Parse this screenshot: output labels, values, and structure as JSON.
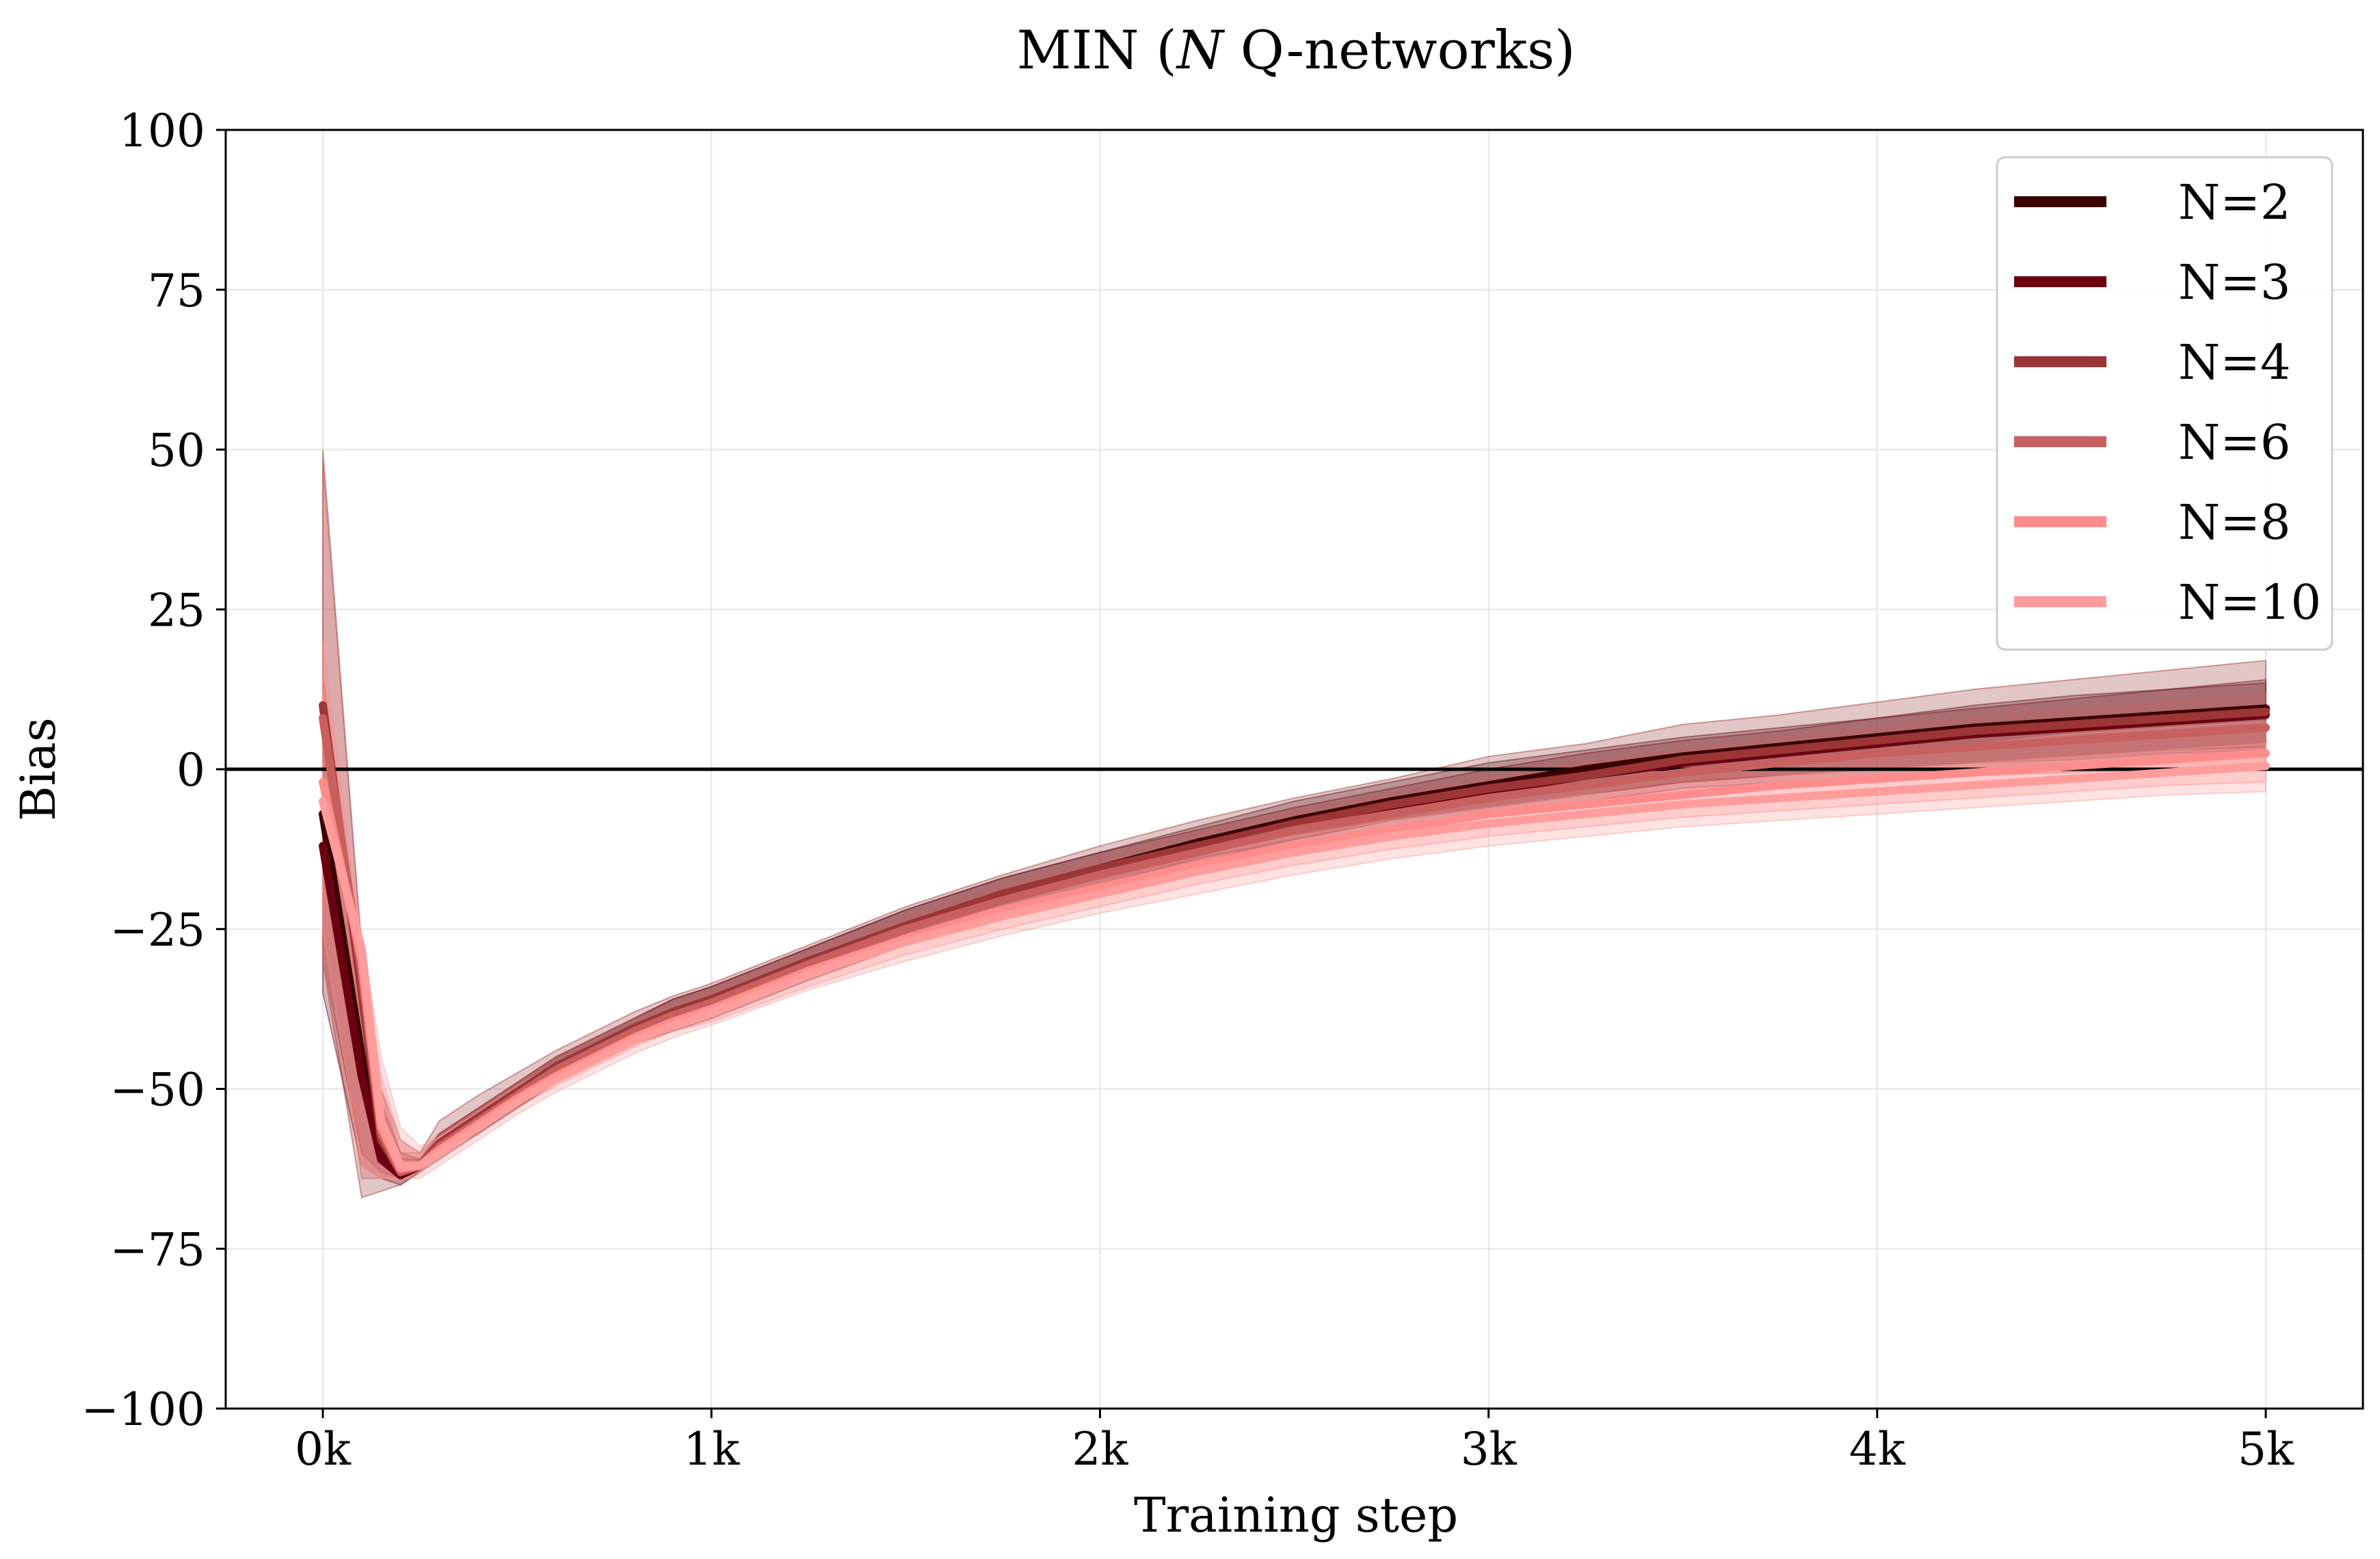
{
  "chart_data": {
    "type": "line",
    "title_main": "MIN (",
    "title_var": "N",
    "title_rest": " Q-networks)",
    "xlabel": "Training step",
    "ylabel": "Bias",
    "xlim": [
      -250,
      5250
    ],
    "ylim": [
      -100,
      100
    ],
    "x_ticks": [
      {
        "value": 0,
        "label": "0k"
      },
      {
        "value": 1000,
        "label": "1k"
      },
      {
        "value": 2000,
        "label": "2k"
      },
      {
        "value": 3000,
        "label": "3k"
      },
      {
        "value": 4000,
        "label": "4k"
      },
      {
        "value": 5000,
        "label": "5k"
      }
    ],
    "y_ticks": [
      {
        "value": 100,
        "label": "100"
      },
      {
        "value": 75,
        "label": "75"
      },
      {
        "value": 50,
        "label": "50"
      },
      {
        "value": 25,
        "label": "25"
      },
      {
        "value": 0,
        "label": "0"
      },
      {
        "value": -25,
        "label": "−25"
      },
      {
        "value": -50,
        "label": "−50"
      },
      {
        "value": -75,
        "label": "−75"
      },
      {
        "value": -100,
        "label": "−100"
      }
    ],
    "grid": true,
    "reference_line_y": 0,
    "legend_position": "top-right",
    "x": [
      0,
      100,
      150,
      200,
      250,
      300,
      400,
      500,
      600,
      700,
      800,
      900,
      1000,
      1250,
      1500,
      1750,
      2000,
      2250,
      2500,
      2750,
      3000,
      3250,
      3500,
      3750,
      4000,
      4250,
      4500,
      4750,
      5000
    ],
    "series": [
      {
        "name": "N=2",
        "color": "#3a0000",
        "values": [
          -7,
          -45,
          -60,
          -63,
          -62,
          -59,
          -55,
          -51,
          -47,
          -44,
          -41,
          -38,
          -36,
          -30,
          -24.5,
          -19.5,
          -15.5,
          -11.5,
          -8,
          -5,
          -2.5,
          0,
          2,
          3.5,
          5,
          6.5,
          7.5,
          8.5,
          9.5
        ],
        "lower": [
          -30,
          -60,
          -63,
          -64,
          -63,
          -60,
          -57,
          -53,
          -49,
          -46,
          -43,
          -40,
          -38,
          -32,
          -27,
          -22,
          -18,
          -14,
          -11,
          -8,
          -6,
          -4,
          -2,
          -1,
          0,
          1,
          2,
          3,
          3.5
        ],
        "upper": [
          10,
          -30,
          -52,
          -60,
          -61,
          -57,
          -53,
          -49,
          -45,
          -42,
          -39,
          -36,
          -34,
          -28,
          -22,
          -17,
          -13,
          -9,
          -5,
          -2,
          1,
          3,
          5,
          6.5,
          8,
          10,
          11.5,
          12.5,
          13.5
        ]
      },
      {
        "name": "N=3",
        "color": "#6b0010",
        "values": [
          -12,
          -48,
          -61,
          -63.5,
          -62,
          -59,
          -55,
          -51,
          -47,
          -44,
          -41,
          -38.5,
          -36.5,
          -30.5,
          -25,
          -20,
          -16,
          -12.5,
          -9,
          -6,
          -3.5,
          -1,
          1,
          2.5,
          4,
          5.5,
          6.5,
          7.5,
          8.5
        ],
        "lower": [
          -35,
          -62,
          -64,
          -65,
          -63,
          -61,
          -57,
          -53,
          -49,
          -46,
          -43,
          -41,
          -39,
          -33,
          -27.5,
          -23,
          -19,
          -15.5,
          -12,
          -9,
          -7,
          -5,
          -3,
          -2,
          -1,
          0,
          1,
          1.5,
          2
        ],
        "upper": [
          15,
          -30,
          -53,
          -61,
          -61,
          -57,
          -53,
          -49,
          -45,
          -42,
          -39,
          -36,
          -34,
          -28,
          -22,
          -17,
          -13,
          -9.5,
          -6,
          -3,
          0,
          2.5,
          4.5,
          6,
          8,
          9.5,
          11,
          12.5,
          14
        ]
      },
      {
        "name": "N=4",
        "color": "#9c3535",
        "values": [
          10,
          -35,
          -58,
          -63,
          -62,
          -58.5,
          -54.5,
          -50.5,
          -46.5,
          -43.5,
          -40.5,
          -38,
          -36,
          -30,
          -24.5,
          -19.5,
          -15.5,
          -12,
          -8.5,
          -5.5,
          -3,
          -1,
          1.5,
          3,
          4.5,
          6,
          7,
          8,
          9
        ],
        "lower": [
          -30,
          -67,
          -66,
          -65,
          -63,
          -60,
          -56,
          -52,
          -48,
          -45,
          -42,
          -40,
          -38,
          -32,
          -26.5,
          -22,
          -18,
          -14.5,
          -11,
          -8,
          -6,
          -4,
          -2,
          -1,
          0,
          1,
          1.5,
          2.5,
          3
        ],
        "upper": [
          50,
          -28,
          -50,
          -58,
          -60,
          -55,
          -51,
          -47.5,
          -44,
          -41,
          -38,
          -35.5,
          -33.5,
          -27.5,
          -21.5,
          -16.5,
          -12,
          -8,
          -4.5,
          -1.5,
          2,
          4,
          7,
          8.5,
          10.5,
          12.5,
          14,
          15.5,
          17
        ]
      },
      {
        "name": "N=6",
        "color": "#c86060",
        "values": [
          8,
          -32,
          -57,
          -63,
          -62,
          -59,
          -55,
          -51,
          -47,
          -44,
          -41,
          -38.5,
          -36.5,
          -30.5,
          -25,
          -20.5,
          -16.5,
          -13,
          -9.5,
          -7,
          -4.5,
          -2.5,
          -0.5,
          1,
          2.5,
          3.5,
          4.5,
          5.5,
          6.5
        ],
        "lower": [
          -20,
          -64,
          -64,
          -64,
          -63,
          -60,
          -56.5,
          -52.5,
          -48.5,
          -45.5,
          -42.5,
          -40,
          -38,
          -32.5,
          -27,
          -22.5,
          -19,
          -15.5,
          -12,
          -9.5,
          -7.5,
          -6,
          -4,
          -3,
          -2,
          -1,
          -0.5,
          0,
          0.5
        ],
        "upper": [
          48,
          -28,
          -50,
          -60,
          -60,
          -57,
          -53,
          -49,
          -45,
          -42,
          -39,
          -36.5,
          -34.5,
          -28.5,
          -23,
          -18,
          -14,
          -10,
          -6.5,
          -4,
          -1.5,
          1,
          3,
          5,
          6.5,
          8,
          9.5,
          10.5,
          12
        ]
      },
      {
        "name": "N=8",
        "color": "#ff8c8c",
        "values": [
          -2,
          -30,
          -56,
          -62.5,
          -62,
          -59.5,
          -55.5,
          -51.5,
          -48,
          -45,
          -42,
          -39.5,
          -37.5,
          -31.5,
          -26.5,
          -22,
          -18.5,
          -15,
          -12,
          -9.5,
          -7,
          -5.5,
          -4,
          -2.5,
          -1.5,
          -0.5,
          0.5,
          1.5,
          2.5
        ],
        "lower": [
          -25,
          -62,
          -64,
          -64,
          -63,
          -61,
          -57,
          -53,
          -49.5,
          -46.5,
          -43.5,
          -41,
          -39.5,
          -34,
          -29,
          -25,
          -21.5,
          -18,
          -15,
          -12.5,
          -10.5,
          -9,
          -7.5,
          -6.5,
          -5.5,
          -4.5,
          -3.5,
          -2.5,
          -2
        ],
        "upper": [
          20,
          -28,
          -48,
          -58,
          -60,
          -57.5,
          -53.5,
          -49.5,
          -46,
          -43,
          -40,
          -37.5,
          -35.5,
          -29.5,
          -24,
          -19.5,
          -15.5,
          -12,
          -9,
          -6.5,
          -4,
          -2,
          0,
          1.5,
          3,
          4,
          5.5,
          6.5,
          7.5
        ]
      },
      {
        "name": "N=10",
        "color": "#ff9c9c",
        "values": [
          -5,
          -28,
          -55,
          -62,
          -62,
          -60,
          -56,
          -52,
          -48.5,
          -45.5,
          -42.5,
          -40,
          -38,
          -32,
          -27,
          -23,
          -19.5,
          -16,
          -13,
          -10.5,
          -8.5,
          -7,
          -5.5,
          -4.5,
          -3.5,
          -2.5,
          -1.5,
          -0.5,
          0.5
        ],
        "lower": [
          -30,
          -62,
          -64,
          -64,
          -64,
          -62,
          -58,
          -54,
          -50.5,
          -47.5,
          -44.5,
          -42,
          -40,
          -34.5,
          -30,
          -26,
          -22.5,
          -19.5,
          -16.5,
          -14,
          -12,
          -10.5,
          -9,
          -8,
          -7,
          -6,
          -5,
          -4,
          -3.5
        ],
        "upper": [
          15,
          -26,
          -45,
          -56,
          -59,
          -57.5,
          -54,
          -50,
          -46.5,
          -43.5,
          -40.5,
          -38,
          -36,
          -30,
          -25,
          -20.5,
          -17,
          -13.5,
          -10.5,
          -8,
          -6,
          -4,
          -2.5,
          -1,
          0,
          1,
          2,
          3,
          4
        ]
      }
    ]
  }
}
